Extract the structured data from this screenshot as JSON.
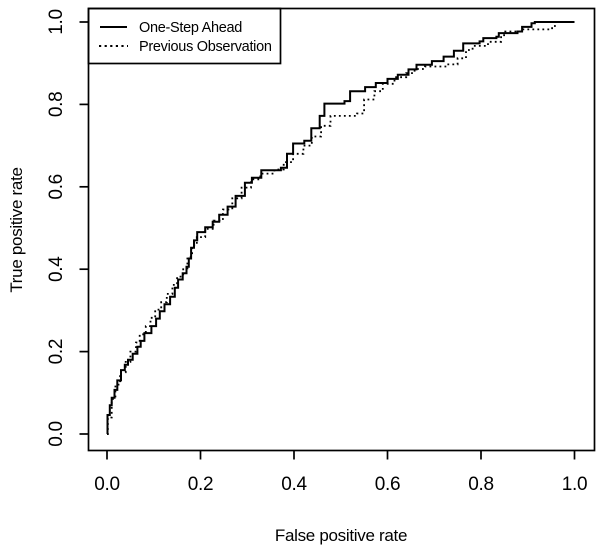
{
  "colors": {
    "background": "#ffffff",
    "foreground": "#000000"
  },
  "chart_data": {
    "type": "line",
    "title": "",
    "xlabel": "False positive rate",
    "ylabel": "True positive rate",
    "xlim": [
      0.0,
      1.0
    ],
    "ylim": [
      0.0,
      1.0
    ],
    "xticks": [
      "0.0",
      "0.2",
      "0.4",
      "0.6",
      "0.8",
      "1.0"
    ],
    "yticks": [
      "0.0",
      "0.2",
      "0.4",
      "0.6",
      "0.8",
      "1.0"
    ],
    "grid": false,
    "legend_position": "top-left",
    "style": "r-base-roc-step-plot",
    "series": [
      {
        "name": "One-Step Ahead",
        "line_style": "solid",
        "color": "#000000",
        "step": true,
        "points": [
          [
            0.0,
            0.0
          ],
          [
            0.001,
            0.046
          ],
          [
            0.006,
            0.07
          ],
          [
            0.01,
            0.088
          ],
          [
            0.016,
            0.107
          ],
          [
            0.022,
            0.13
          ],
          [
            0.03,
            0.155
          ],
          [
            0.038,
            0.168
          ],
          [
            0.045,
            0.18
          ],
          [
            0.055,
            0.195
          ],
          [
            0.065,
            0.212
          ],
          [
            0.072,
            0.226
          ],
          [
            0.08,
            0.245
          ],
          [
            0.095,
            0.262
          ],
          [
            0.105,
            0.28
          ],
          [
            0.113,
            0.298
          ],
          [
            0.123,
            0.315
          ],
          [
            0.135,
            0.333
          ],
          [
            0.145,
            0.355
          ],
          [
            0.152,
            0.375
          ],
          [
            0.162,
            0.39
          ],
          [
            0.17,
            0.406
          ],
          [
            0.175,
            0.426
          ],
          [
            0.18,
            0.452
          ],
          [
            0.186,
            0.47
          ],
          [
            0.193,
            0.49
          ],
          [
            0.21,
            0.502
          ],
          [
            0.226,
            0.515
          ],
          [
            0.24,
            0.532
          ],
          [
            0.258,
            0.552
          ],
          [
            0.275,
            0.578
          ],
          [
            0.295,
            0.61
          ],
          [
            0.31,
            0.622
          ],
          [
            0.33,
            0.64
          ],
          [
            0.372,
            0.646
          ],
          [
            0.385,
            0.68
          ],
          [
            0.398,
            0.705
          ],
          [
            0.422,
            0.712
          ],
          [
            0.437,
            0.742
          ],
          [
            0.455,
            0.772
          ],
          [
            0.465,
            0.802
          ],
          [
            0.508,
            0.808
          ],
          [
            0.52,
            0.832
          ],
          [
            0.552,
            0.842
          ],
          [
            0.575,
            0.852
          ],
          [
            0.6,
            0.862
          ],
          [
            0.622,
            0.872
          ],
          [
            0.645,
            0.885
          ],
          [
            0.662,
            0.896
          ],
          [
            0.695,
            0.905
          ],
          [
            0.72,
            0.916
          ],
          [
            0.742,
            0.93
          ],
          [
            0.762,
            0.948
          ],
          [
            0.797,
            0.953
          ],
          [
            0.805,
            0.961
          ],
          [
            0.833,
            0.964
          ],
          [
            0.838,
            0.973
          ],
          [
            0.878,
            0.977
          ],
          [
            0.888,
            0.988
          ],
          [
            0.908,
            0.997
          ],
          [
            0.915,
            1.0
          ],
          [
            1.0,
            1.0
          ]
        ]
      },
      {
        "name": "Previous Observation",
        "line_style": "dotted",
        "color": "#000000",
        "step": true,
        "points": [
          [
            0.0,
            0.0
          ],
          [
            0.002,
            0.04
          ],
          [
            0.01,
            0.085
          ],
          [
            0.018,
            0.12
          ],
          [
            0.028,
            0.15
          ],
          [
            0.04,
            0.175
          ],
          [
            0.05,
            0.2
          ],
          [
            0.062,
            0.222
          ],
          [
            0.07,
            0.242
          ],
          [
            0.083,
            0.262
          ],
          [
            0.093,
            0.282
          ],
          [
            0.103,
            0.302
          ],
          [
            0.116,
            0.32
          ],
          [
            0.128,
            0.34
          ],
          [
            0.14,
            0.362
          ],
          [
            0.15,
            0.382
          ],
          [
            0.163,
            0.402
          ],
          [
            0.172,
            0.43
          ],
          [
            0.182,
            0.458
          ],
          [
            0.192,
            0.478
          ],
          [
            0.21,
            0.498
          ],
          [
            0.228,
            0.518
          ],
          [
            0.248,
            0.545
          ],
          [
            0.268,
            0.572
          ],
          [
            0.288,
            0.598
          ],
          [
            0.308,
            0.618
          ],
          [
            0.328,
            0.632
          ],
          [
            0.358,
            0.642
          ],
          [
            0.378,
            0.66
          ],
          [
            0.398,
            0.68
          ],
          [
            0.42,
            0.7
          ],
          [
            0.438,
            0.722
          ],
          [
            0.458,
            0.748
          ],
          [
            0.478,
            0.772
          ],
          [
            0.535,
            0.778
          ],
          [
            0.55,
            0.812
          ],
          [
            0.572,
            0.832
          ],
          [
            0.59,
            0.85
          ],
          [
            0.615,
            0.866
          ],
          [
            0.64,
            0.876
          ],
          [
            0.658,
            0.886
          ],
          [
            0.68,
            0.892
          ],
          [
            0.728,
            0.897
          ],
          [
            0.75,
            0.912
          ],
          [
            0.768,
            0.932
          ],
          [
            0.782,
            0.942
          ],
          [
            0.815,
            0.952
          ],
          [
            0.843,
            0.968
          ],
          [
            0.852,
            0.977
          ],
          [
            0.888,
            0.982
          ],
          [
            0.952,
            0.988
          ],
          [
            0.958,
            1.0
          ],
          [
            1.0,
            1.0
          ]
        ]
      }
    ]
  }
}
